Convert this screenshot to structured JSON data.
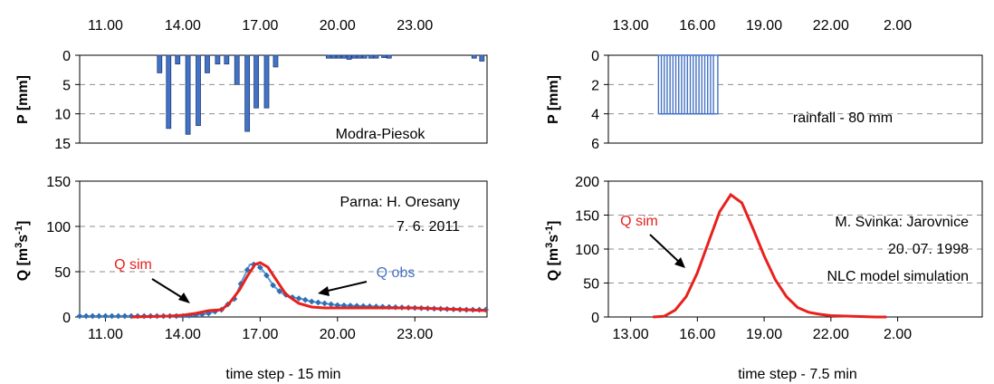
{
  "chart_data": [
    {
      "type": "bar",
      "panel": "left-rainfall",
      "ylabel": "P [mm]",
      "ylim": [
        0,
        15
      ],
      "y_inverted": true,
      "yticks": [
        "0",
        "5",
        "10",
        "15"
      ],
      "xticks_top": [
        "11.00",
        "14.00",
        "17.00",
        "20.00",
        "23.00"
      ],
      "x_range_hours": [
        10.0,
        25.8
      ],
      "annotation": "Modra-Piesok",
      "grid": "horizontal dashed",
      "series": [
        {
          "color": "#4472c4",
          "x": [
            13.1,
            13.45,
            13.8,
            14.2,
            14.6,
            14.95,
            15.35,
            15.7,
            16.1,
            16.5,
            16.85,
            17.25,
            17.6,
            19.65,
            19.85,
            20.05,
            20.25,
            20.45,
            20.65,
            20.85,
            21.05,
            21.3,
            21.5,
            21.8,
            22.0,
            25.3,
            25.6
          ],
          "values": [
            3,
            12.5,
            1.5,
            13.5,
            12,
            3,
            1.5,
            1.5,
            5,
            13,
            9,
            9,
            2,
            0.5,
            0.5,
            0.5,
            0.5,
            0.7,
            0.5,
            0.5,
            0.5,
            0.5,
            0.5,
            0.4,
            0.5,
            0.5,
            1
          ]
        }
      ]
    },
    {
      "type": "line",
      "panel": "left-discharge",
      "ylabel": "Q [m³s⁻¹]",
      "xlabel": "time step - 15 min",
      "ylim": [
        0,
        150
      ],
      "yticks": [
        "0",
        "50",
        "100",
        "150"
      ],
      "xticks": [
        "11.00",
        "14.00",
        "17.00",
        "20.00",
        "23.00"
      ],
      "x_range_hours": [
        10.0,
        25.8
      ],
      "annotations": [
        "Parna: H. Oresany",
        "7. 6. 2011",
        "Q sim",
        "Q obs"
      ],
      "grid": "horizontal dashed",
      "series": [
        {
          "name": "Q sim",
          "color": "#e8211d",
          "x": [
            12.0,
            13.5,
            14.0,
            14.5,
            15.0,
            15.5,
            15.8,
            16.2,
            16.5,
            16.8,
            17.0,
            17.3,
            17.6,
            18.0,
            18.5,
            19.0,
            19.5,
            20.0,
            21.0,
            22.0,
            23.0,
            24.0,
            25.0,
            25.8
          ],
          "values": [
            0,
            1,
            2,
            4,
            7,
            8,
            15,
            30,
            45,
            58,
            60,
            55,
            42,
            25,
            15,
            11,
            10,
            10,
            10,
            10,
            10,
            9,
            8,
            7
          ]
        },
        {
          "name": "Q obs",
          "color": "#5b9bd5",
          "x": [
            10.0,
            11.0,
            12.0,
            13.0,
            14.0,
            14.5,
            15.0,
            15.5,
            16.0,
            16.3,
            16.6,
            16.9,
            17.2,
            17.5,
            17.8,
            18.2,
            18.6,
            19.0,
            20.0,
            21.0,
            22.0,
            23.0,
            24.0,
            25.0,
            25.8
          ],
          "values": [
            1,
            1,
            1,
            1,
            1,
            2,
            4,
            8,
            20,
            40,
            58,
            58,
            48,
            35,
            27,
            22,
            20,
            17,
            13,
            12,
            11,
            10,
            9,
            8,
            8
          ]
        }
      ]
    },
    {
      "type": "bar",
      "panel": "right-rainfall",
      "ylabel": "P [mm]",
      "ylim": [
        0,
        6
      ],
      "y_inverted": true,
      "yticks": [
        "0",
        "2",
        "4",
        "6"
      ],
      "xticks_top": [
        "13.00",
        "16.00",
        "19.00",
        "22.00",
        "2.00"
      ],
      "x_range_hours": [
        12.0,
        28.8
      ],
      "annotation": "rainfall -  80 mm",
      "grid": "horizontal dashed",
      "series": [
        {
          "color": "#4472c4",
          "x": [
            14.35,
            14.48,
            14.61,
            14.74,
            14.87,
            15.0,
            15.13,
            15.26,
            15.39,
            15.52,
            15.65,
            15.78,
            15.91,
            16.04,
            16.17,
            16.3,
            16.43,
            16.56,
            16.69,
            16.82
          ],
          "values": [
            4,
            4,
            4,
            4,
            4,
            4,
            4,
            4,
            4,
            4,
            4,
            4,
            4,
            4,
            4,
            4,
            4,
            4,
            4,
            4
          ]
        }
      ]
    },
    {
      "type": "line",
      "panel": "right-discharge",
      "ylabel": "Q [m³s⁻¹]",
      "xlabel": "time step - 7.5 min",
      "ylim": [
        0,
        200
      ],
      "yticks": [
        "0",
        "50",
        "100",
        "150",
        "200"
      ],
      "xticks": [
        "13.00",
        "16.00",
        "19.00",
        "22.00",
        "2.00"
      ],
      "x_range_hours": [
        12.0,
        28.8
      ],
      "annotations": [
        "M. Svinka: Jarovnice",
        "20. 07. 1998",
        "NLC model simulation",
        "Q sim"
      ],
      "grid": "horizontal dashed",
      "series": [
        {
          "name": "Q sim",
          "color": "#e8211d",
          "x": [
            14.0,
            14.5,
            15.0,
            15.5,
            16.0,
            16.5,
            17.0,
            17.5,
            18.0,
            18.5,
            19.0,
            19.5,
            20.0,
            20.5,
            21.0,
            21.5,
            22.0,
            23.0,
            24.0,
            24.5
          ],
          "values": [
            0,
            1,
            10,
            30,
            65,
            110,
            155,
            180,
            168,
            130,
            90,
            55,
            30,
            14,
            7,
            4,
            2,
            1,
            0,
            0
          ]
        }
      ]
    }
  ]
}
